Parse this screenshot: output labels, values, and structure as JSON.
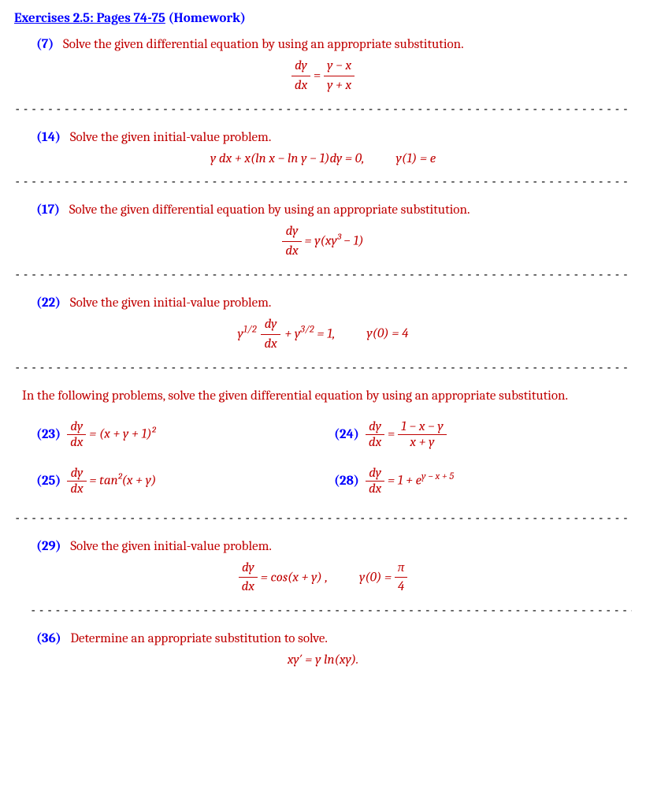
{
  "colors": {
    "blue": "#0000ff",
    "red": "#c00000",
    "black": "#000000",
    "bg": "#ffffff"
  },
  "title": {
    "underlined": "Exercises 2.5: Pages 74-75",
    "plain": "   (Homework)"
  },
  "sep_full": "-------------------------------------------------------------------------------------------------------------------------------",
  "sep_short": "---------------------------------------------------------------------------------------------------------------------",
  "p7": {
    "num": "(7)",
    "text": "Solve the given differential equation by using an appropriate substitution."
  },
  "p14": {
    "num": "(14)",
    "text": "Solve the given initial-value problem.",
    "eq_lhs": "y dx + x(ln x − ln y − 1)dy = 0,",
    "eq_rhs": "y(1) = e"
  },
  "p17": {
    "num": "(17)",
    "text": "Solve the given differential equation by using an appropriate substitution.",
    "eq_rhs": " = y(xy³ − 1)"
  },
  "p22": {
    "num": "(22)",
    "text": "Solve the given initial-value problem.",
    "eq_mid": " + y",
    "eq_end": " = 1,",
    "eq_cond": "y(0) = 4"
  },
  "intro": "In the following problems, solve the given differential equation by using an appropriate substitution.",
  "p23": {
    "num": "(23)",
    "rhs": " = (x + y + 1)²"
  },
  "p24": {
    "num": "(24)"
  },
  "p25": {
    "num": "(25)",
    "rhs": " = tan²(x + y)"
  },
  "p28": {
    "num": "(28)",
    "rhs": " = 1 + e",
    "exp": "y − x + 5"
  },
  "p29": {
    "num": "(29)",
    "text": "Solve the given initial-value problem.",
    "eq_lhs": " = cos(x + y) ,",
    "eq_cond": "y(0) = "
  },
  "p36": {
    "num": "(36)",
    "text": "Determine an appropriate substitution to solve.",
    "eq": "xy′ = y ln(xy)."
  },
  "frac": {
    "dy": "dy",
    "dx": "dx",
    "ymx": "y − x",
    "ypx": "y + x",
    "onemxmy": "1 − x − y",
    "xpy": "x + y",
    "pi": "π",
    "four": "4"
  },
  "exponents": {
    "half": "1/2",
    "threehalf": "3/2"
  }
}
